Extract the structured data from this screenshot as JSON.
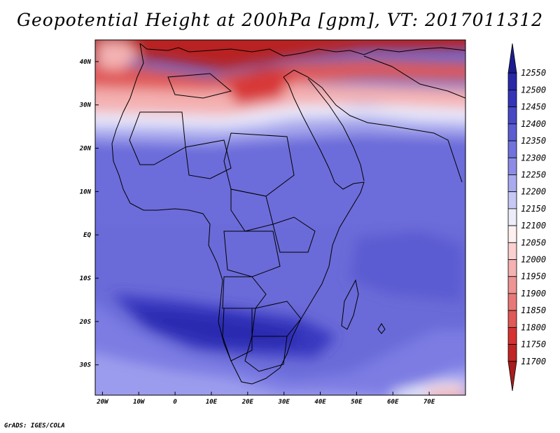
{
  "title": "Geopotential Height at 200hPa [gpm], VT: 2017011312",
  "credit": "GrADS: IGES/COLA",
  "map": {
    "region": "Africa",
    "variable": "Geopotential Height at 200hPa",
    "units": "gpm",
    "valid_time": "2017011312",
    "lon_range": [
      -22,
      80
    ],
    "lat_range": [
      -37,
      45
    ],
    "lon_ticks": [
      {
        "value": -20,
        "label": "20W"
      },
      {
        "value": -10,
        "label": "10W"
      },
      {
        "value": 0,
        "label": "0"
      },
      {
        "value": 10,
        "label": "10E"
      },
      {
        "value": 20,
        "label": "20E"
      },
      {
        "value": 30,
        "label": "30E"
      },
      {
        "value": 40,
        "label": "40E"
      },
      {
        "value": 50,
        "label": "50E"
      },
      {
        "value": 60,
        "label": "60E"
      },
      {
        "value": 70,
        "label": "70E"
      }
    ],
    "lat_ticks": [
      {
        "value": 40,
        "label": "40N"
      },
      {
        "value": 30,
        "label": "30N"
      },
      {
        "value": 20,
        "label": "20N"
      },
      {
        "value": 10,
        "label": "10N"
      },
      {
        "value": 0,
        "label": "EQ"
      },
      {
        "value": -10,
        "label": "10S"
      },
      {
        "value": -20,
        "label": "20S"
      },
      {
        "value": -30,
        "label": "30S"
      }
    ]
  },
  "colorbar": {
    "levels": [
      "11700",
      "11750",
      "11800",
      "11850",
      "11900",
      "11950",
      "12000",
      "12050",
      "12100",
      "12150",
      "12200",
      "12250",
      "12300",
      "12350",
      "12400",
      "12450",
      "12500",
      "12550"
    ],
    "colors": [
      "#a81c1c",
      "#c12424",
      "#d63232",
      "#e05858",
      "#e87878",
      "#ee9494",
      "#f4b2b2",
      "#fad0d0",
      "#fdf0f0",
      "#ececfb",
      "#c8c8f6",
      "#aaaaef",
      "#8c8ce6",
      "#7272dc",
      "#5c5cd2",
      "#4848c6",
      "#3434b8",
      "#2828a8",
      "#1c1c90"
    ]
  }
}
